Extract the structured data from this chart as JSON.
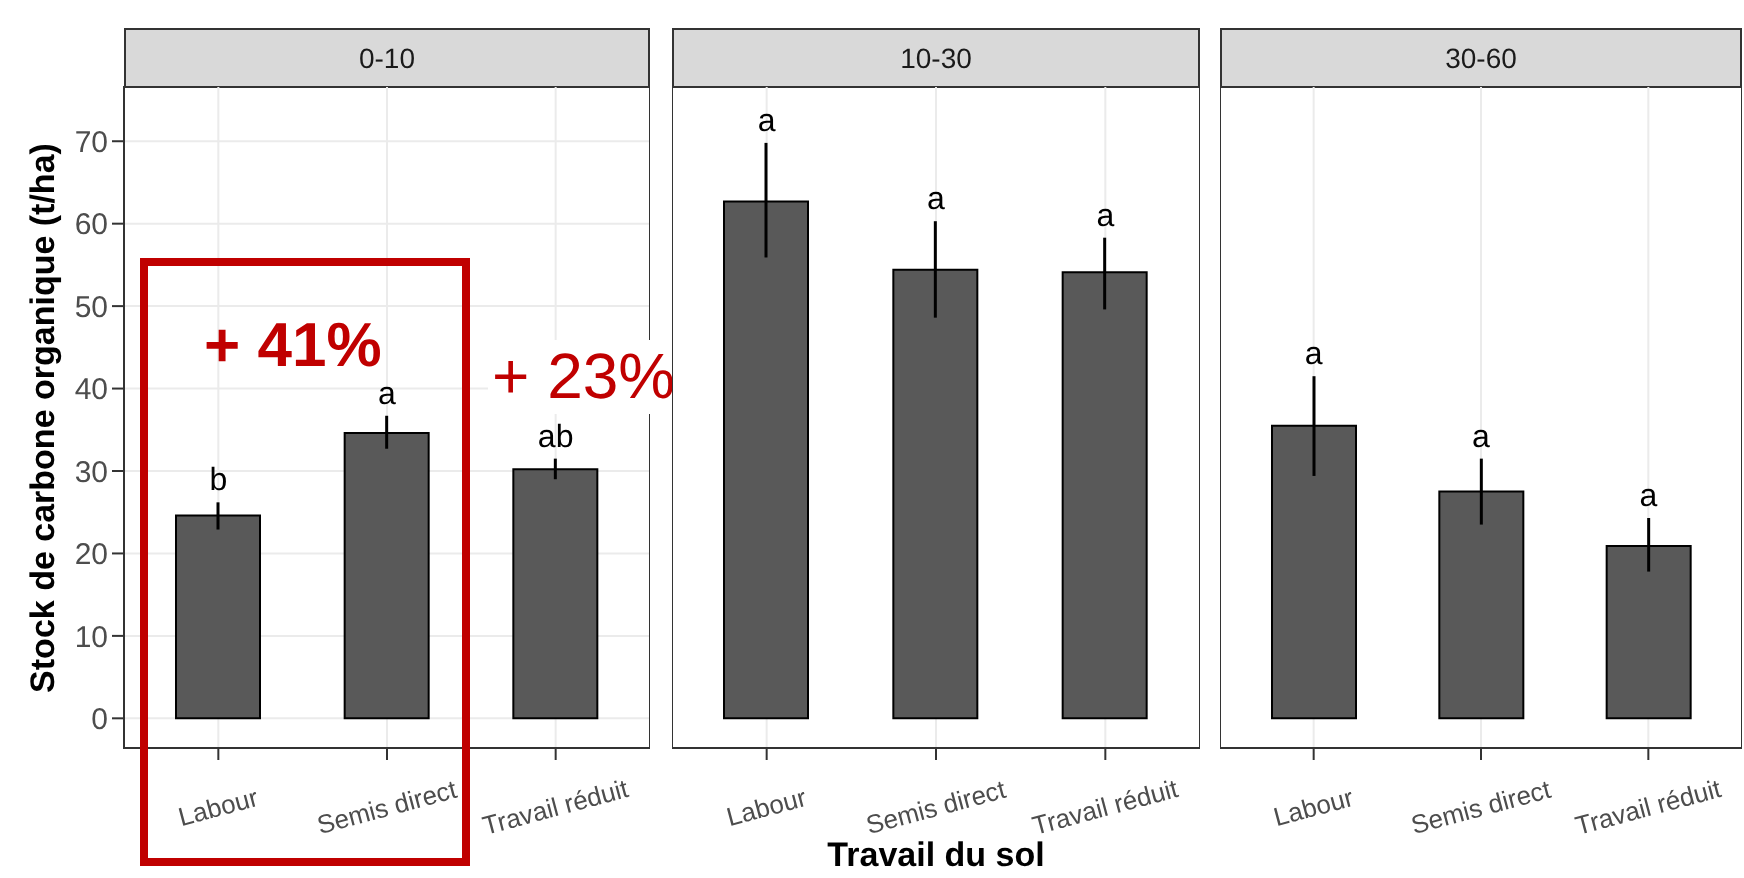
{
  "chart_data": [
    {
      "type": "bar",
      "title": "0-10",
      "ylabel": "Stock de carbone organique (t/ha)",
      "categories": [
        "Labour",
        "Semis direct",
        "Travail réduit"
      ],
      "values": [
        24.6,
        34.6,
        30.2
      ],
      "errors": [
        [
          22.9,
          26.2
        ],
        [
          32.7,
          36.7
        ],
        [
          29.0,
          31.5
        ]
      ],
      "color": "#595959",
      "ylim": [
        -3.6,
        76.7
      ],
      "yticks": [
        0,
        10,
        20,
        30,
        40,
        50,
        60,
        70
      ],
      "grid": true,
      "annotations": [
        {
          "text": "b",
          "x": "Labour",
          "y": 26.2
        },
        {
          "text": "a",
          "x": "Semis direct",
          "y": 36.7
        },
        {
          "text": "ab",
          "x": "Travail réduit",
          "y": 31.5
        },
        "+ 41%",
        "+ 23%"
      ]
    },
    {
      "type": "bar",
      "title": "10-30",
      "xlabel": "Travail du sol",
      "categories": [
        "Labour",
        "Semis direct",
        "Travail réduit"
      ],
      "values": [
        62.7,
        54.4,
        54.1
      ],
      "errors": [
        [
          55.9,
          69.8
        ],
        [
          48.6,
          60.3
        ],
        [
          49.6,
          58.3
        ]
      ],
      "color": "#595959",
      "ylim": [
        -3.6,
        76.7
      ],
      "yticks": [
        0,
        10,
        20,
        30,
        40,
        50,
        60,
        70
      ],
      "grid": true,
      "tick_labels": "x",
      "annotations": [
        {
          "text": "a",
          "x": "Labour",
          "y": 69.8
        },
        {
          "text": "a",
          "x": "Semis direct",
          "y": 60.3
        },
        {
          "text": "a",
          "x": "Travail réduit",
          "y": 58.3
        }
      ]
    },
    {
      "type": "bar",
      "title": "30-60",
      "categories": [
        "Labour",
        "Semis direct",
        "Travail réduit"
      ],
      "values": [
        35.5,
        27.5,
        20.9
      ],
      "errors": [
        [
          29.4,
          41.5
        ],
        [
          23.5,
          31.5
        ],
        [
          17.8,
          24.3
        ]
      ],
      "color": "#595959",
      "ylim": [
        -3.6,
        76.7
      ],
      "yticks": [
        0,
        10,
        20,
        30,
        40,
        50,
        60,
        70
      ],
      "grid": true,
      "tick_labels": "x",
      "annotations": [
        {
          "text": "a",
          "x": "Labour",
          "y": 41.5
        },
        {
          "text": "a",
          "x": "Semis direct",
          "y": 31.5
        },
        {
          "text": "a",
          "x": "Travail réduit",
          "y": 24.3
        }
      ]
    }
  ]
}
